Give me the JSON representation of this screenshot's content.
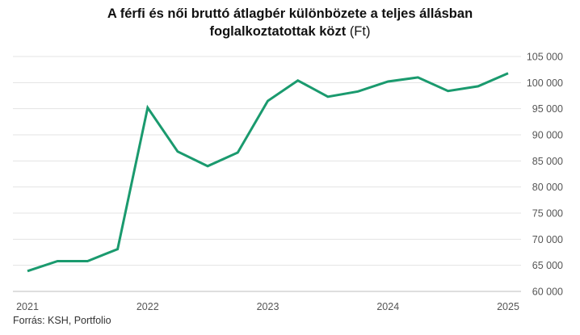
{
  "chart_data": {
    "type": "line",
    "title_main": "A férfi és női bruttó átlagbér különbözete a teljes állásban",
    "title_line2": "foglalkoztatottak közt",
    "title_unit": "(Ft)",
    "xlabel": "",
    "ylabel": "",
    "ylim": [
      60000,
      105000
    ],
    "y_ticks": [
      60000,
      65000,
      70000,
      75000,
      80000,
      85000,
      90000,
      95000,
      100000,
      105000
    ],
    "y_tick_labels": [
      "60 000",
      "65 000",
      "70 000",
      "75 000",
      "80 000",
      "85 000",
      "90 000",
      "95 000",
      "100 000",
      "105 000"
    ],
    "x_tick_labels": [
      "2021",
      "2022",
      "2023",
      "2024",
      "2025"
    ],
    "x_tick_positions": [
      0,
      4,
      8,
      12,
      16
    ],
    "grid": true,
    "line_color": "#1a9a6e",
    "series": [
      {
        "values": [
          63900,
          65800,
          65800,
          68100,
          95200,
          86800,
          84000,
          86600,
          96500,
          100400,
          97300,
          98300,
          100200,
          101000,
          98400,
          99300,
          101800
        ]
      }
    ]
  },
  "source": "Forrás:  KSH, Portfolio"
}
